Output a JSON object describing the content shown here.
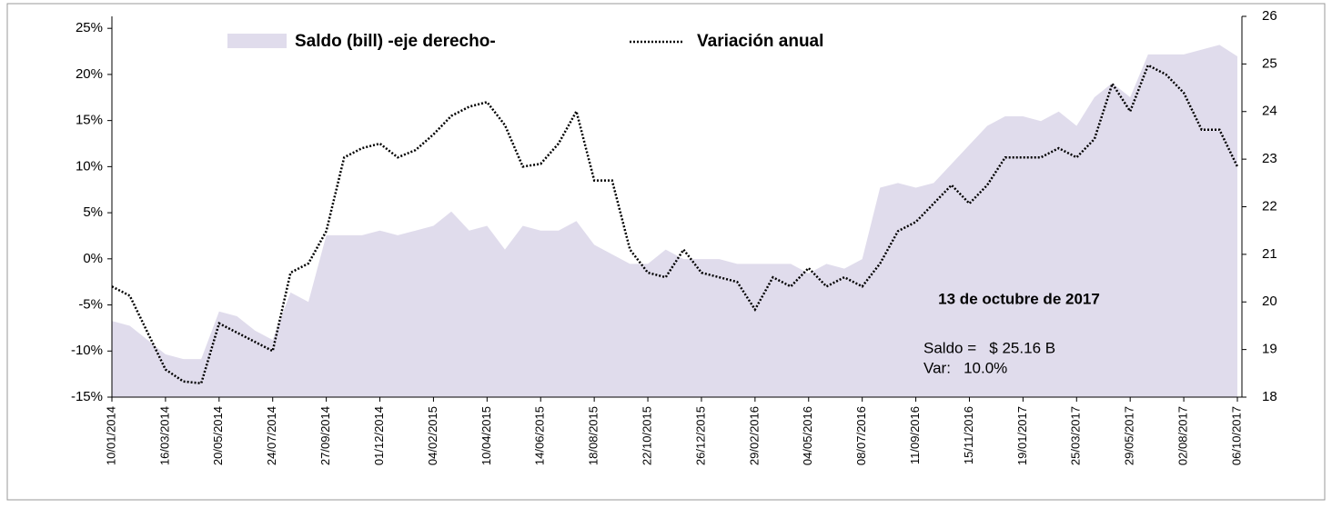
{
  "chart_data": {
    "type": "line",
    "categories": [
      "10/01/2014",
      null,
      null,
      "16/03/2014",
      null,
      null,
      "20/05/2014",
      null,
      null,
      "24/07/2014",
      null,
      null,
      "27/09/2014",
      null,
      null,
      "01/12/2014",
      null,
      null,
      "04/02/2015",
      null,
      null,
      "10/04/2015",
      null,
      null,
      "14/06/2015",
      null,
      null,
      "18/08/2015",
      null,
      null,
      "22/10/2015",
      null,
      null,
      "26/12/2015",
      null,
      null,
      "29/02/2016",
      null,
      null,
      "04/05/2016",
      null,
      null,
      "08/07/2016",
      null,
      null,
      "11/09/2016",
      null,
      null,
      "15/11/2016",
      null,
      null,
      "19/01/2017",
      null,
      null,
      "25/03/2017",
      null,
      null,
      "29/05/2017",
      null,
      null,
      "02/08/2017",
      null,
      null,
      "06/10/2017"
    ],
    "series": [
      {
        "name": "Saldo (bill) -eje derecho-",
        "color": "#e0dcec",
        "axis": "y2",
        "style": "area",
        "values": [
          19.6,
          19.5,
          19.2,
          18.9,
          18.8,
          18.8,
          19.8,
          19.7,
          19.4,
          19.2,
          20.2,
          20.0,
          21.4,
          21.4,
          21.4,
          21.5,
          21.4,
          21.5,
          21.6,
          21.9,
          21.5,
          21.6,
          21.1,
          21.6,
          21.5,
          21.5,
          21.7,
          21.2,
          21.0,
          20.8,
          20.8,
          21.1,
          20.9,
          20.9,
          20.9,
          20.8,
          20.8,
          20.8,
          20.8,
          20.6,
          20.8,
          20.7,
          20.9,
          22.4,
          22.5,
          22.4,
          22.5,
          22.9,
          23.3,
          23.7,
          23.9,
          23.9,
          23.8,
          24.0,
          23.7,
          24.3,
          24.6,
          24.3,
          25.2,
          25.2,
          25.2,
          25.3,
          25.4,
          25.16
        ]
      },
      {
        "name": "Variación anual",
        "color": "#000000",
        "axis": "y",
        "style": "dotted",
        "values": [
          -3,
          -4,
          -8,
          -12,
          -13.3,
          -13.5,
          -7,
          -8,
          -9,
          -10,
          -1.5,
          -0.5,
          3,
          11,
          12,
          12.5,
          11,
          11.8,
          13.5,
          15.5,
          16.5,
          17,
          14.5,
          10,
          10.3,
          12.5,
          16,
          8.5,
          8.5,
          1,
          -1.5,
          -2,
          1,
          -1.5,
          -2,
          -2.5,
          -5.5,
          -2,
          -3,
          -1,
          -3,
          -2,
          -3,
          -0.5,
          3,
          4,
          6,
          8,
          6,
          8,
          11,
          11,
          11,
          12,
          11,
          13,
          19,
          16,
          21,
          20,
          18,
          14,
          14,
          10
        ]
      }
    ],
    "ylim": [
      -15,
      26.3
    ],
    "yticks": [
      {
        "value": -15,
        "label": "-15%"
      },
      {
        "value": -10,
        "label": "-10%"
      },
      {
        "value": -5,
        "label": "-5%"
      },
      {
        "value": 0,
        "label": "0%"
      },
      {
        "value": 5,
        "label": "5%"
      },
      {
        "value": 10,
        "label": "10%"
      },
      {
        "value": 15,
        "label": "15%"
      },
      {
        "value": 20,
        "label": "20%"
      },
      {
        "value": 25,
        "label": "25%"
      }
    ],
    "y2lim": [
      18,
      26
    ],
    "y2ticks": [
      18,
      19,
      20,
      21,
      22,
      23,
      24,
      25,
      26
    ],
    "legend": "top",
    "annotations": [
      "13 de octubre de 2017",
      "Saldo =   $ 25.16 B",
      "Var:   10.0%"
    ]
  }
}
